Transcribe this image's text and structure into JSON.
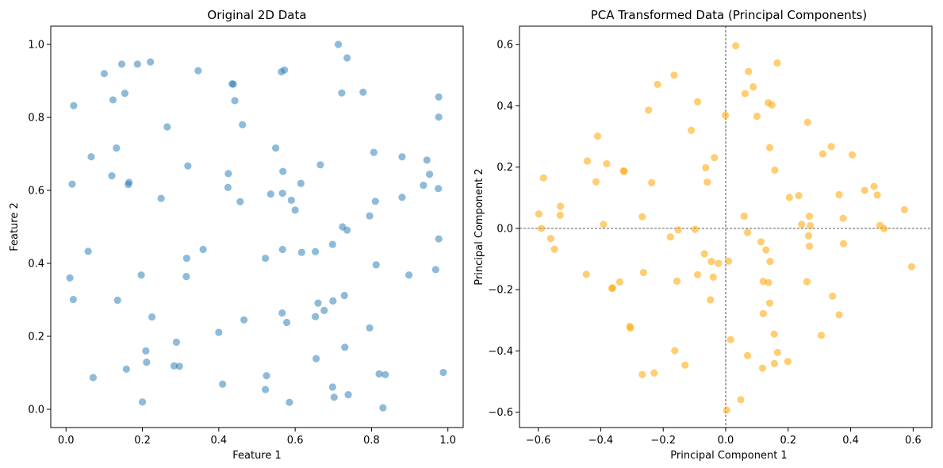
{
  "chart_data": [
    {
      "type": "scatter",
      "title": "Original 2D Data",
      "xlabel": "Feature 1",
      "ylabel": "Feature 2",
      "xlim": [
        -0.04,
        1.04
      ],
      "ylim": [
        -0.05,
        1.05
      ],
      "xticks": [
        0.0,
        0.2,
        0.4,
        0.6,
        0.8,
        1.0
      ],
      "xtick_labels": [
        "0.0",
        "0.2",
        "0.4",
        "0.6",
        "0.8",
        "1.0"
      ],
      "yticks": [
        0.0,
        0.2,
        0.4,
        0.6,
        0.8,
        1.0
      ],
      "ytick_labels": [
        "0.0",
        "0.2",
        "0.4",
        "0.6",
        "0.8",
        "1.0"
      ],
      "grid": false,
      "color": "#1f77b4",
      "alpha": 0.5,
      "series": [
        {
          "points": [
            [
              0.713,
              1.0
            ],
            [
              0.736,
              0.963
            ],
            [
              0.1,
              0.92
            ],
            [
              0.146,
              0.946
            ],
            [
              0.187,
              0.946
            ],
            [
              0.221,
              0.952
            ],
            [
              0.346,
              0.928
            ],
            [
              0.564,
              0.925
            ],
            [
              0.572,
              0.93
            ],
            [
              0.435,
              0.892
            ],
            [
              0.438,
              0.891
            ],
            [
              0.123,
              0.848
            ],
            [
              0.154,
              0.866
            ],
            [
              0.02,
              0.832
            ],
            [
              0.442,
              0.846
            ],
            [
              0.722,
              0.867
            ],
            [
              0.778,
              0.869
            ],
            [
              0.976,
              0.856
            ],
            [
              0.462,
              0.78
            ],
            [
              0.265,
              0.774
            ],
            [
              0.976,
              0.801
            ],
            [
              0.066,
              0.692
            ],
            [
              0.132,
              0.716
            ],
            [
              0.549,
              0.716
            ],
            [
              0.806,
              0.704
            ],
            [
              0.88,
              0.692
            ],
            [
              0.945,
              0.683
            ],
            [
              0.319,
              0.667
            ],
            [
              0.666,
              0.67
            ],
            [
              0.12,
              0.64
            ],
            [
              0.425,
              0.646
            ],
            [
              0.568,
              0.652
            ],
            [
              0.952,
              0.644
            ],
            [
              0.016,
              0.617
            ],
            [
              0.163,
              0.616
            ],
            [
              0.165,
              0.622
            ],
            [
              0.424,
              0.608
            ],
            [
              0.615,
              0.619
            ],
            [
              0.936,
              0.614
            ],
            [
              0.975,
              0.605
            ],
            [
              0.249,
              0.578
            ],
            [
              0.456,
              0.569
            ],
            [
              0.536,
              0.59
            ],
            [
              0.567,
              0.592
            ],
            [
              0.59,
              0.573
            ],
            [
              0.6,
              0.546
            ],
            [
              0.81,
              0.57
            ],
            [
              0.88,
              0.581
            ],
            [
              0.795,
              0.53
            ],
            [
              0.724,
              0.5
            ],
            [
              0.736,
              0.491
            ],
            [
              0.976,
              0.467
            ],
            [
              0.058,
              0.433
            ],
            [
              0.359,
              0.438
            ],
            [
              0.316,
              0.414
            ],
            [
              0.522,
              0.414
            ],
            [
              0.567,
              0.438
            ],
            [
              0.617,
              0.43
            ],
            [
              0.653,
              0.432
            ],
            [
              0.698,
              0.452
            ],
            [
              0.812,
              0.396
            ],
            [
              0.01,
              0.36
            ],
            [
              0.197,
              0.368
            ],
            [
              0.315,
              0.364
            ],
            [
              0.898,
              0.368
            ],
            [
              0.968,
              0.383
            ],
            [
              0.019,
              0.301
            ],
            [
              0.135,
              0.299
            ],
            [
              0.66,
              0.291
            ],
            [
              0.729,
              0.312
            ],
            [
              0.225,
              0.253
            ],
            [
              0.466,
              0.245
            ],
            [
              0.566,
              0.264
            ],
            [
              0.578,
              0.238
            ],
            [
              0.653,
              0.254
            ],
            [
              0.676,
              0.271
            ],
            [
              0.699,
              0.297
            ],
            [
              0.795,
              0.223
            ],
            [
              0.4,
              0.211
            ],
            [
              0.289,
              0.184
            ],
            [
              0.209,
              0.16
            ],
            [
              0.73,
              0.17
            ],
            [
              0.211,
              0.129
            ],
            [
              0.283,
              0.119
            ],
            [
              0.297,
              0.118
            ],
            [
              0.158,
              0.11
            ],
            [
              0.071,
              0.087
            ],
            [
              0.525,
              0.092
            ],
            [
              0.655,
              0.139
            ],
            [
              0.82,
              0.097
            ],
            [
              0.836,
              0.095
            ],
            [
              0.988,
              0.101
            ],
            [
              0.41,
              0.069
            ],
            [
              0.522,
              0.054
            ],
            [
              0.698,
              0.061
            ],
            [
              0.702,
              0.033
            ],
            [
              0.739,
              0.04
            ],
            [
              0.2,
              0.02
            ],
            [
              0.585,
              0.019
            ],
            [
              0.83,
              0.004
            ]
          ]
        }
      ]
    },
    {
      "type": "scatter",
      "title": "PCA Transformed Data (Principal Components)",
      "xlabel": "Principal Component 1",
      "ylabel": "Principal Component 2",
      "xlim": [
        -0.66,
        0.66
      ],
      "ylim": [
        -0.65,
        0.66
      ],
      "xticks": [
        -0.6,
        -0.4,
        -0.2,
        0.0,
        0.2,
        0.4,
        0.6
      ],
      "xtick_labels": [
        "−0.6",
        "−0.4",
        "−0.2",
        "0.0",
        "0.2",
        "0.4",
        "0.6"
      ],
      "yticks": [
        -0.6,
        -0.4,
        -0.2,
        0.0,
        0.2,
        0.4,
        0.6
      ],
      "ytick_labels": [
        "−0.6",
        "−0.4",
        "−0.2",
        "0.0",
        "0.2",
        "0.4",
        "0.6"
      ],
      "grid": false,
      "reference_lines": {
        "x": 0,
        "y": 0
      },
      "color": "#ffa500",
      "alpha": 0.55,
      "series": [
        {
          "points": [
            [
              0.032,
              0.596
            ],
            [
              0.165,
              0.54
            ],
            [
              0.073,
              0.512
            ],
            [
              -0.165,
              0.5
            ],
            [
              -0.218,
              0.47
            ],
            [
              0.062,
              0.44
            ],
            [
              0.088,
              0.462
            ],
            [
              0.136,
              0.41
            ],
            [
              0.148,
              0.403
            ],
            [
              -0.09,
              0.413
            ],
            [
              -0.247,
              0.386
            ],
            [
              0.1,
              0.366
            ],
            [
              -0.001,
              0.369
            ],
            [
              0.262,
              0.346
            ],
            [
              -0.11,
              0.32
            ],
            [
              -0.41,
              0.301
            ],
            [
              0.141,
              0.264
            ],
            [
              0.338,
              0.267
            ],
            [
              0.405,
              0.24
            ],
            [
              0.311,
              0.243
            ],
            [
              -0.443,
              0.22
            ],
            [
              -0.381,
              0.211
            ],
            [
              -0.327,
              0.188
            ],
            [
              -0.325,
              0.186
            ],
            [
              -0.036,
              0.231
            ],
            [
              -0.064,
              0.198
            ],
            [
              0.157,
              0.19
            ],
            [
              -0.583,
              0.165
            ],
            [
              -0.415,
              0.152
            ],
            [
              -0.237,
              0.149
            ],
            [
              -0.059,
              0.151
            ],
            [
              0.204,
              0.101
            ],
            [
              0.234,
              0.107
            ],
            [
              0.363,
              0.11
            ],
            [
              0.445,
              0.124
            ],
            [
              0.475,
              0.137
            ],
            [
              0.485,
              0.109
            ],
            [
              -0.529,
              0.072
            ],
            [
              -0.53,
              0.043
            ],
            [
              -0.598,
              0.047
            ],
            [
              -0.267,
              0.038
            ],
            [
              0.059,
              0.04
            ],
            [
              0.268,
              0.04
            ],
            [
              0.376,
              0.033
            ],
            [
              0.572,
              0.061
            ],
            [
              -0.59,
              0.0
            ],
            [
              -0.391,
              0.013
            ],
            [
              -0.152,
              -0.005
            ],
            [
              -0.098,
              -0.003
            ],
            [
              0.243,
              0.013
            ],
            [
              0.271,
              0.009
            ],
            [
              0.494,
              0.01
            ],
            [
              0.507,
              -0.001
            ],
            [
              -0.56,
              -0.033
            ],
            [
              -0.177,
              -0.028
            ],
            [
              0.07,
              -0.013
            ],
            [
              0.113,
              -0.044
            ],
            [
              0.265,
              -0.024
            ],
            [
              -0.548,
              -0.068
            ],
            [
              0.129,
              -0.07
            ],
            [
              0.268,
              -0.058
            ],
            [
              0.377,
              -0.05
            ],
            [
              -0.068,
              -0.083
            ],
            [
              0.142,
              -0.108
            ],
            [
              -0.046,
              -0.108
            ],
            [
              -0.023,
              -0.114
            ],
            [
              0.009,
              -0.107
            ],
            [
              -0.09,
              -0.151
            ],
            [
              -0.04,
              -0.159
            ],
            [
              0.12,
              -0.173
            ],
            [
              0.137,
              -0.177
            ],
            [
              0.26,
              -0.174
            ],
            [
              -0.446,
              -0.15
            ],
            [
              -0.339,
              -0.175
            ],
            [
              -0.263,
              -0.144
            ],
            [
              -0.156,
              -0.172
            ],
            [
              0.595,
              -0.125
            ],
            [
              -0.362,
              -0.194
            ],
            [
              -0.364,
              -0.196
            ],
            [
              -0.049,
              -0.233
            ],
            [
              0.342,
              -0.221
            ],
            [
              0.141,
              -0.244
            ],
            [
              0.363,
              -0.282
            ],
            [
              0.12,
              -0.278
            ],
            [
              -0.307,
              -0.32
            ],
            [
              -0.305,
              -0.325
            ],
            [
              0.155,
              -0.345
            ],
            [
              0.306,
              -0.349
            ],
            [
              0.016,
              -0.363
            ],
            [
              -0.163,
              -0.399
            ],
            [
              0.07,
              -0.415
            ],
            [
              0.166,
              -0.405
            ],
            [
              -0.13,
              -0.446
            ],
            [
              0.118,
              -0.456
            ],
            [
              0.156,
              -0.441
            ],
            [
              0.199,
              -0.434
            ],
            [
              -0.267,
              -0.477
            ],
            [
              -0.229,
              -0.472
            ],
            [
              0.048,
              -0.559
            ],
            [
              0.003,
              -0.593
            ]
          ]
        }
      ]
    }
  ]
}
